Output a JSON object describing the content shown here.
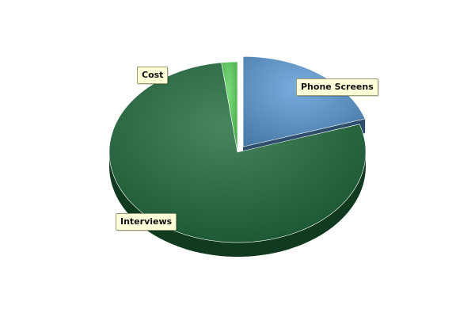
{
  "chart_data": {
    "type": "pie",
    "title": "",
    "three_d": true,
    "legend": "none",
    "slices": [
      {
        "label": "Phone Screens",
        "value": 20.0,
        "color": "#5b9bd5",
        "exploded": true
      },
      {
        "label": "Interviews",
        "value": 78.0,
        "color": "#1e6b3c",
        "exploded": false
      },
      {
        "label": "Cost",
        "value": 2.0,
        "color": "#5cd65c",
        "exploded": false
      }
    ]
  }
}
